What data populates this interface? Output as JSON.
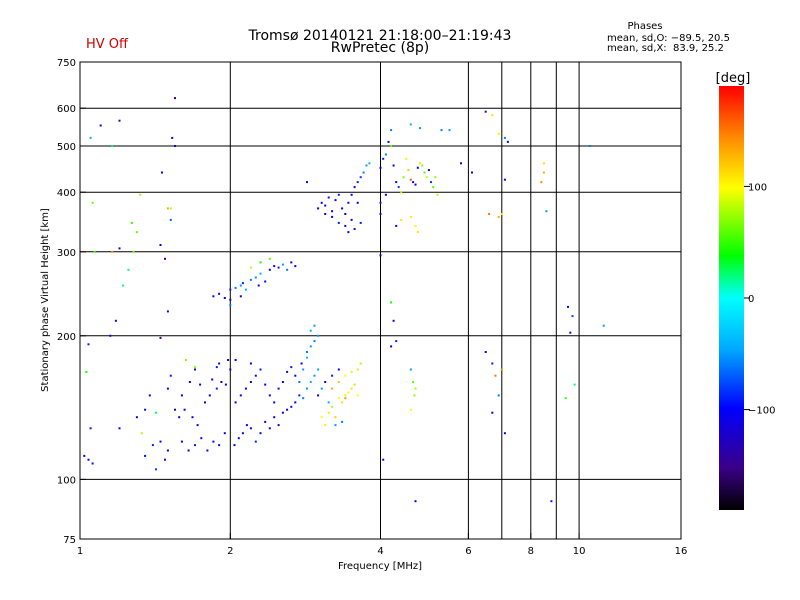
{
  "header": {
    "status": "HV Off",
    "title_line1": "Tromsø 20140121 21:18:00–21:19:43",
    "title_line2": "RwPretec (8p)",
    "phase_title": "Phases",
    "phase_o": "mean, sd,O: −89.5, 20.5",
    "phase_x": "mean, sd,X:  83.9, 25.2"
  },
  "colors": {
    "status": "#cc0000",
    "grid": "#000000"
  },
  "colorbar": {
    "label": "[deg]",
    "ticks": [
      100,
      0,
      -100
    ],
    "tick_labels": [
      "100",
      "0",
      "−100"
    ],
    "range": [
      -190,
      190
    ]
  },
  "chart_data": {
    "type": "scatter",
    "xlabel": "Frequency [MHz]",
    "ylabel": "Stationary phase Virtual Height [km]",
    "x_scale": "log",
    "y_scale": "log",
    "xlim": [
      1,
      16
    ],
    "ylim": [
      75,
      750
    ],
    "x_ticks": [
      1,
      2,
      4,
      6,
      8,
      10,
      16
    ],
    "x_tick_labels": [
      "1",
      "2",
      "4",
      "6",
      "8",
      "10",
      "16"
    ],
    "x_grid": [
      2,
      4,
      6,
      7,
      8,
      9,
      10
    ],
    "y_ticks": [
      75,
      100,
      200,
      300,
      400,
      500,
      600,
      750
    ],
    "y_tick_labels": [
      "75",
      "100",
      "200",
      "300",
      "400",
      "500",
      "600",
      "750"
    ],
    "y_grid": [
      100,
      200,
      300,
      400,
      500,
      600
    ],
    "color_meaning": "phase in degrees",
    "points": [
      [
        1.02,
        112,
        -110
      ],
      [
        1.04,
        110,
        -100
      ],
      [
        1.06,
        108,
        -95
      ],
      [
        1.05,
        128,
        -90
      ],
      [
        1.03,
        168,
        40
      ],
      [
        1.04,
        192,
        -90
      ],
      [
        1.06,
        380,
        60
      ],
      [
        1.07,
        300,
        50
      ],
      [
        1.05,
        520,
        -40
      ],
      [
        1.1,
        552,
        -100
      ],
      [
        1.2,
        565,
        -150
      ],
      [
        1.16,
        500,
        20
      ],
      [
        1.15,
        200,
        -95
      ],
      [
        1.18,
        215,
        -100
      ],
      [
        1.22,
        255,
        20
      ],
      [
        1.25,
        275,
        20
      ],
      [
        1.28,
        300,
        60
      ],
      [
        1.3,
        330,
        60
      ],
      [
        1.27,
        345,
        50
      ],
      [
        1.32,
        395,
        80
      ],
      [
        1.2,
        305,
        -120
      ],
      [
        1.16,
        300,
        140
      ],
      [
        1.2,
        128,
        -100
      ],
      [
        1.3,
        135,
        -100
      ],
      [
        1.33,
        125,
        80
      ],
      [
        1.35,
        112,
        -95
      ],
      [
        1.4,
        118,
        -90
      ],
      [
        1.42,
        105,
        -80
      ],
      [
        1.45,
        120,
        -100
      ],
      [
        1.5,
        115,
        -110
      ],
      [
        1.48,
        110,
        -95
      ],
      [
        1.35,
        140,
        -100
      ],
      [
        1.38,
        150,
        -100
      ],
      [
        1.42,
        138,
        20
      ],
      [
        1.5,
        155,
        -110
      ],
      [
        1.52,
        165,
        -90
      ],
      [
        1.55,
        140,
        -120
      ],
      [
        1.58,
        135,
        -100
      ],
      [
        1.6,
        150,
        -110
      ],
      [
        1.45,
        198,
        -150
      ],
      [
        1.5,
        225,
        -140
      ],
      [
        1.52,
        350,
        -70
      ],
      [
        1.48,
        290,
        -150
      ],
      [
        1.45,
        310,
        -100
      ],
      [
        1.5,
        370,
        130
      ],
      [
        1.46,
        440,
        -100
      ],
      [
        1.55,
        500,
        -110
      ],
      [
        1.53,
        520,
        -130
      ],
      [
        1.55,
        630,
        -160
      ],
      [
        1.52,
        370,
        80
      ],
      [
        1.6,
        120,
        -100
      ],
      [
        1.65,
        115,
        -110
      ],
      [
        1.7,
        118,
        -90
      ],
      [
        1.75,
        122,
        -95
      ],
      [
        1.8,
        115,
        -110
      ],
      [
        1.85,
        120,
        -100
      ],
      [
        1.9,
        118,
        -95
      ],
      [
        1.95,
        125,
        -110
      ],
      [
        1.62,
        140,
        -100
      ],
      [
        1.68,
        135,
        -100
      ],
      [
        1.72,
        130,
        -110
      ],
      [
        1.78,
        145,
        -115
      ],
      [
        1.82,
        150,
        -100
      ],
      [
        1.88,
        155,
        -90
      ],
      [
        1.92,
        160,
        -110
      ],
      [
        1.96,
        158,
        -100
      ],
      [
        1.66,
        160,
        -110
      ],
      [
        1.74,
        158,
        -95
      ],
      [
        1.84,
        162,
        -100
      ],
      [
        1.7,
        170,
        -110
      ],
      [
        1.9,
        175,
        -120
      ],
      [
        1.98,
        178,
        -100
      ],
      [
        1.63,
        178,
        70
      ],
      [
        1.7,
        172,
        70
      ],
      [
        1.88,
        172,
        -90
      ],
      [
        2.0,
        170,
        -100
      ],
      [
        2.04,
        118,
        -110
      ],
      [
        2.08,
        122,
        -95
      ],
      [
        2.12,
        125,
        -100
      ],
      [
        2.16,
        130,
        -110
      ],
      [
        2.2,
        128,
        -100
      ],
      [
        2.25,
        120,
        -90
      ],
      [
        2.3,
        125,
        -100
      ],
      [
        2.35,
        132,
        -110
      ],
      [
        2.4,
        128,
        -95
      ],
      [
        2.45,
        135,
        -100
      ],
      [
        2.5,
        130,
        -120
      ],
      [
        2.55,
        138,
        -100
      ],
      [
        2.6,
        140,
        -110
      ],
      [
        2.65,
        142,
        -95
      ],
      [
        2.7,
        145,
        -100
      ],
      [
        2.75,
        150,
        -90
      ],
      [
        2.8,
        148,
        -60
      ],
      [
        2.85,
        155,
        -50
      ],
      [
        2.9,
        160,
        -40
      ],
      [
        2.95,
        165,
        -50
      ],
      [
        3.0,
        170,
        -45
      ],
      [
        2.05,
        145,
        -100
      ],
      [
        2.1,
        150,
        -110
      ],
      [
        2.15,
        155,
        -95
      ],
      [
        2.2,
        160,
        -100
      ],
      [
        2.25,
        165,
        -110
      ],
      [
        2.3,
        170,
        -90
      ],
      [
        2.35,
        158,
        -100
      ],
      [
        2.4,
        150,
        -110
      ],
      [
        2.45,
        145,
        -100
      ],
      [
        2.5,
        155,
        -95
      ],
      [
        2.55,
        160,
        -100
      ],
      [
        2.6,
        168,
        -110
      ],
      [
        2.65,
        172,
        -90
      ],
      [
        2.7,
        165,
        -100
      ],
      [
        2.75,
        160,
        -60
      ],
      [
        2.8,
        170,
        -50
      ],
      [
        2.85,
        180,
        -40
      ],
      [
        2.9,
        190,
        -50
      ],
      [
        2.95,
        195,
        -60
      ],
      [
        3.0,
        200,
        -50
      ],
      [
        2.9,
        205,
        -40
      ],
      [
        2.95,
        210,
        -50
      ],
      [
        2.85,
        185,
        -60
      ],
      [
        2.78,
        175,
        -100
      ],
      [
        2.2,
        175,
        -100
      ],
      [
        2.05,
        178,
        -110
      ],
      [
        3.05,
        135,
        100
      ],
      [
        3.1,
        130,
        90
      ],
      [
        3.15,
        138,
        110
      ],
      [
        3.2,
        142,
        80
      ],
      [
        3.25,
        135,
        120
      ],
      [
        3.3,
        148,
        100
      ],
      [
        3.35,
        145,
        110
      ],
      [
        3.4,
        150,
        90
      ],
      [
        3.45,
        152,
        100
      ],
      [
        3.5,
        155,
        110
      ],
      [
        3.55,
        158,
        80
      ],
      [
        3.6,
        150,
        100
      ],
      [
        3.3,
        160,
        120
      ],
      [
        3.4,
        165,
        100
      ],
      [
        3.5,
        168,
        90
      ],
      [
        3.6,
        170,
        110
      ],
      [
        3.65,
        175,
        80
      ],
      [
        3.2,
        155,
        130
      ],
      [
        3.35,
        132,
        -60
      ],
      [
        3.25,
        130,
        -50
      ],
      [
        3.15,
        145,
        -40
      ],
      [
        3.05,
        155,
        -50
      ],
      [
        3.1,
        160,
        -100
      ],
      [
        3.0,
        150,
        -110
      ],
      [
        3.2,
        165,
        -90
      ],
      [
        3.3,
        170,
        -100
      ],
      [
        3.4,
        148,
        140
      ],
      [
        1.85,
        242,
        -100
      ],
      [
        1.9,
        245,
        -110
      ],
      [
        1.95,
        240,
        -100
      ],
      [
        2.0,
        250,
        -90
      ],
      [
        2.05,
        252,
        -60
      ],
      [
        2.1,
        255,
        -50
      ],
      [
        2.15,
        250,
        -40
      ],
      [
        2.2,
        262,
        -60
      ],
      [
        2.25,
        265,
        -50
      ],
      [
        2.3,
        270,
        -40
      ],
      [
        2.35,
        260,
        -100
      ],
      [
        2.4,
        275,
        -110
      ],
      [
        2.45,
        280,
        -100
      ],
      [
        2.5,
        278,
        -90
      ],
      [
        2.55,
        282,
        -50
      ],
      [
        2.6,
        275,
        -60
      ],
      [
        2.65,
        285,
        -100
      ],
      [
        2.7,
        280,
        -110
      ],
      [
        2.3,
        285,
        40
      ],
      [
        2.4,
        290,
        60
      ],
      [
        2.2,
        278,
        80
      ],
      [
        2.1,
        242,
        -100
      ],
      [
        2.0,
        238,
        -110
      ],
      [
        2.12,
        258,
        -90
      ],
      [
        2.28,
        255,
        -100
      ],
      [
        2.0,
        232,
        -60
      ],
      [
        3.0,
        370,
        -100
      ],
      [
        3.05,
        380,
        -110
      ],
      [
        3.1,
        375,
        -100
      ],
      [
        3.15,
        390,
        -95
      ],
      [
        3.2,
        365,
        -110
      ],
      [
        3.25,
        385,
        -100
      ],
      [
        3.3,
        395,
        -90
      ],
      [
        3.35,
        370,
        -110
      ],
      [
        3.4,
        360,
        -100
      ],
      [
        3.45,
        380,
        -95
      ],
      [
        3.5,
        395,
        -100
      ],
      [
        3.55,
        410,
        -110
      ],
      [
        3.6,
        420,
        -90
      ],
      [
        3.65,
        430,
        -80
      ],
      [
        3.7,
        440,
        -60
      ],
      [
        3.75,
        455,
        -50
      ],
      [
        3.8,
        460,
        -40
      ],
      [
        3.6,
        380,
        -100
      ],
      [
        3.5,
        350,
        -110
      ],
      [
        3.4,
        340,
        -100
      ],
      [
        3.3,
        345,
        -90
      ],
      [
        3.2,
        355,
        -100
      ],
      [
        3.1,
        360,
        -110
      ],
      [
        2.85,
        420,
        -110
      ],
      [
        3.45,
        330,
        -100
      ],
      [
        3.55,
        335,
        -95
      ],
      [
        3.65,
        345,
        -90
      ],
      [
        4.0,
        450,
        -100
      ],
      [
        4.05,
        470,
        -90
      ],
      [
        4.1,
        480,
        -60
      ],
      [
        4.15,
        510,
        -100
      ],
      [
        4.2,
        500,
        60
      ],
      [
        4.25,
        455,
        -100
      ],
      [
        4.3,
        420,
        -110
      ],
      [
        4.35,
        410,
        -80
      ],
      [
        4.4,
        400,
        80
      ],
      [
        4.45,
        430,
        70
      ],
      [
        4.5,
        470,
        100
      ],
      [
        4.55,
        445,
        120
      ],
      [
        4.6,
        425,
        160
      ],
      [
        4.65,
        420,
        -110
      ],
      [
        4.7,
        415,
        -100
      ],
      [
        4.75,
        450,
        -100
      ],
      [
        4.8,
        460,
        110
      ],
      [
        4.85,
        455,
        70
      ],
      [
        4.9,
        440,
        60
      ],
      [
        4.95,
        430,
        80
      ],
      [
        5.0,
        445,
        -100
      ],
      [
        5.05,
        420,
        -80
      ],
      [
        5.1,
        410,
        60
      ],
      [
        5.15,
        430,
        70
      ],
      [
        5.2,
        395,
        80
      ],
      [
        4.2,
        540,
        -60
      ],
      [
        4.6,
        555,
        -40
      ],
      [
        4.8,
        545,
        -50
      ],
      [
        5.3,
        540,
        -60
      ],
      [
        5.5,
        540,
        -50
      ],
      [
        4.3,
        340,
        -100
      ],
      [
        4.4,
        350,
        110
      ],
      [
        4.6,
        355,
        90
      ],
      [
        4.7,
        340,
        100
      ],
      [
        4.75,
        330,
        110
      ],
      [
        4.0,
        360,
        -110
      ],
      [
        4.0,
        380,
        -90
      ],
      [
        4.1,
        395,
        -100
      ],
      [
        4.0,
        295,
        -100
      ],
      [
        4.2,
        235,
        40
      ],
      [
        4.25,
        215,
        -100
      ],
      [
        4.2,
        190,
        -100
      ],
      [
        4.3,
        195,
        -90
      ],
      [
        4.6,
        170,
        -50
      ],
      [
        4.65,
        160,
        60
      ],
      [
        4.7,
        155,
        80
      ],
      [
        4.68,
        150,
        70
      ],
      [
        4.6,
        140,
        100
      ],
      [
        4.05,
        110,
        -110
      ],
      [
        4.7,
        90,
        -100
      ],
      [
        5.8,
        460,
        -100
      ],
      [
        6.1,
        440,
        -100
      ],
      [
        6.5,
        590,
        -150
      ],
      [
        6.7,
        580,
        110
      ],
      [
        6.9,
        530,
        90
      ],
      [
        7.1,
        520,
        -60
      ],
      [
        7.2,
        510,
        -100
      ],
      [
        6.6,
        360,
        150
      ],
      [
        6.9,
        355,
        130
      ],
      [
        7.0,
        360,
        110
      ],
      [
        7.1,
        425,
        -100
      ],
      [
        6.5,
        185,
        -100
      ],
      [
        6.7,
        175,
        -90
      ],
      [
        6.8,
        165,
        150
      ],
      [
        7.0,
        170,
        140
      ],
      [
        6.9,
        150,
        -60
      ],
      [
        6.7,
        138,
        -100
      ],
      [
        7.1,
        125,
        -110
      ],
      [
        8.5,
        460,
        110
      ],
      [
        8.5,
        440,
        130
      ],
      [
        8.4,
        420,
        140
      ],
      [
        8.6,
        365,
        -50
      ],
      [
        8.8,
        90,
        -90
      ],
      [
        9.5,
        230,
        -100
      ],
      [
        9.7,
        220,
        -80
      ],
      [
        9.6,
        203,
        -100
      ],
      [
        9.8,
        158,
        20
      ],
      [
        9.4,
        148,
        50
      ],
      [
        10.5,
        500,
        -60
      ],
      [
        11.2,
        210,
        -50
      ]
    ]
  },
  "axes": {
    "xlabel": "Frequency [MHz]",
    "ylabel": "Stationary phase Virtual Height [km]"
  }
}
